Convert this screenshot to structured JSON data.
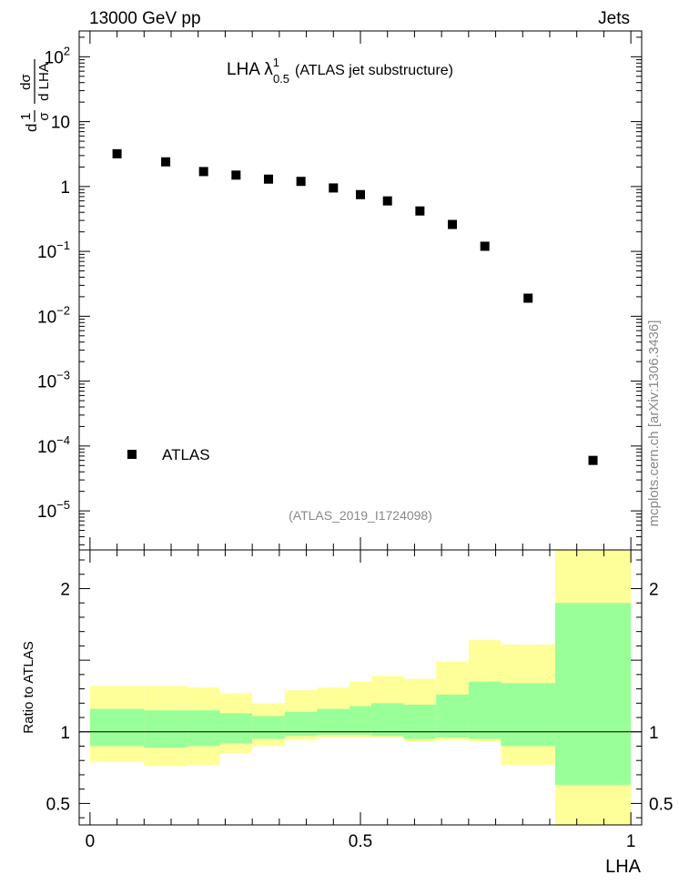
{
  "header": {
    "left": "13000 GeV pp",
    "right": "Jets"
  },
  "side_label": "mcplots.cern.ch [arXiv:1306.3436]",
  "chart_data": [
    {
      "type": "scatter",
      "title_main": "LHA λ",
      "title_sup": "1",
      "title_sub": "0.5",
      "title_rest": "(ATLAS jet substructure)",
      "analysis_id": "(ATLAS_2019_I1724098)",
      "ylabel": {
        "part1_num": "1",
        "part1_den": "σ",
        "part2_num": "dσ",
        "part2_den": "d LHA",
        "d": "d"
      },
      "yscale": "log",
      "ylim": [
        2.5e-06,
        250
      ],
      "xlim": [
        -0.02,
        1.02
      ],
      "y_ticks": [
        {
          "value": 1e-05,
          "base": "10",
          "exp": "−5"
        },
        {
          "value": 0.0001,
          "base": "10",
          "exp": "−4"
        },
        {
          "value": 0.001,
          "base": "10",
          "exp": "−3"
        },
        {
          "value": 0.01,
          "base": "10",
          "exp": "−2"
        },
        {
          "value": 0.1,
          "base": "10",
          "exp": "−1"
        },
        {
          "value": 1,
          "base": "1",
          "exp": ""
        },
        {
          "value": 10,
          "base": "10",
          "exp": ""
        },
        {
          "value": 100,
          "base": "10",
          "exp": "2"
        }
      ],
      "series": [
        {
          "name": "ATLAS",
          "marker": "square",
          "x": [
            0.05,
            0.14,
            0.21,
            0.27,
            0.33,
            0.39,
            0.45,
            0.5,
            0.55,
            0.61,
            0.67,
            0.73,
            0.81,
            0.93
          ],
          "y": [
            3.2,
            2.4,
            1.7,
            1.5,
            1.3,
            1.2,
            0.95,
            0.75,
            0.6,
            0.42,
            0.26,
            0.12,
            0.019,
            6e-05
          ]
        }
      ],
      "legend": {
        "position": "bottom-left",
        "entries": [
          "ATLAS"
        ]
      }
    },
    {
      "type": "area",
      "ylabel": "Ratio to ATLAS",
      "xlabel": "LHA",
      "ylim": [
        0.35,
        2.27
      ],
      "xlim": [
        -0.02,
        1.02
      ],
      "x_ticks": [
        {
          "value": 0,
          "label": "0"
        },
        {
          "value": 0.5,
          "label": "0.5"
        },
        {
          "value": 1,
          "label": "1"
        }
      ],
      "y_ticks": [
        {
          "value": 0.5,
          "label": "0.5"
        },
        {
          "value": 1,
          "label": "1"
        },
        {
          "value": 2,
          "label": "2"
        }
      ],
      "reference_line": 1,
      "bin_edges": [
        0,
        0.1,
        0.18,
        0.24,
        0.3,
        0.36,
        0.42,
        0.48,
        0.52,
        0.58,
        0.64,
        0.7,
        0.76,
        0.86,
        1.0
      ],
      "inner_band": {
        "color": "#99ff99",
        "lower": [
          0.9,
          0.89,
          0.9,
          0.92,
          0.95,
          0.97,
          0.98,
          0.98,
          0.97,
          0.95,
          0.96,
          0.95,
          0.9,
          0.63
        ],
        "upper": [
          1.16,
          1.15,
          1.15,
          1.13,
          1.11,
          1.14,
          1.16,
          1.18,
          1.2,
          1.19,
          1.26,
          1.35,
          1.34,
          1.9
        ]
      },
      "outer_band": {
        "color": "#ffff99",
        "lower": [
          0.79,
          0.76,
          0.77,
          0.85,
          0.9,
          0.94,
          0.96,
          0.96,
          0.96,
          0.93,
          0.94,
          0.93,
          0.77,
          0.35
        ],
        "upper": [
          1.32,
          1.32,
          1.31,
          1.27,
          1.2,
          1.29,
          1.31,
          1.35,
          1.39,
          1.37,
          1.49,
          1.64,
          1.61,
          2.27
        ]
      }
    }
  ]
}
